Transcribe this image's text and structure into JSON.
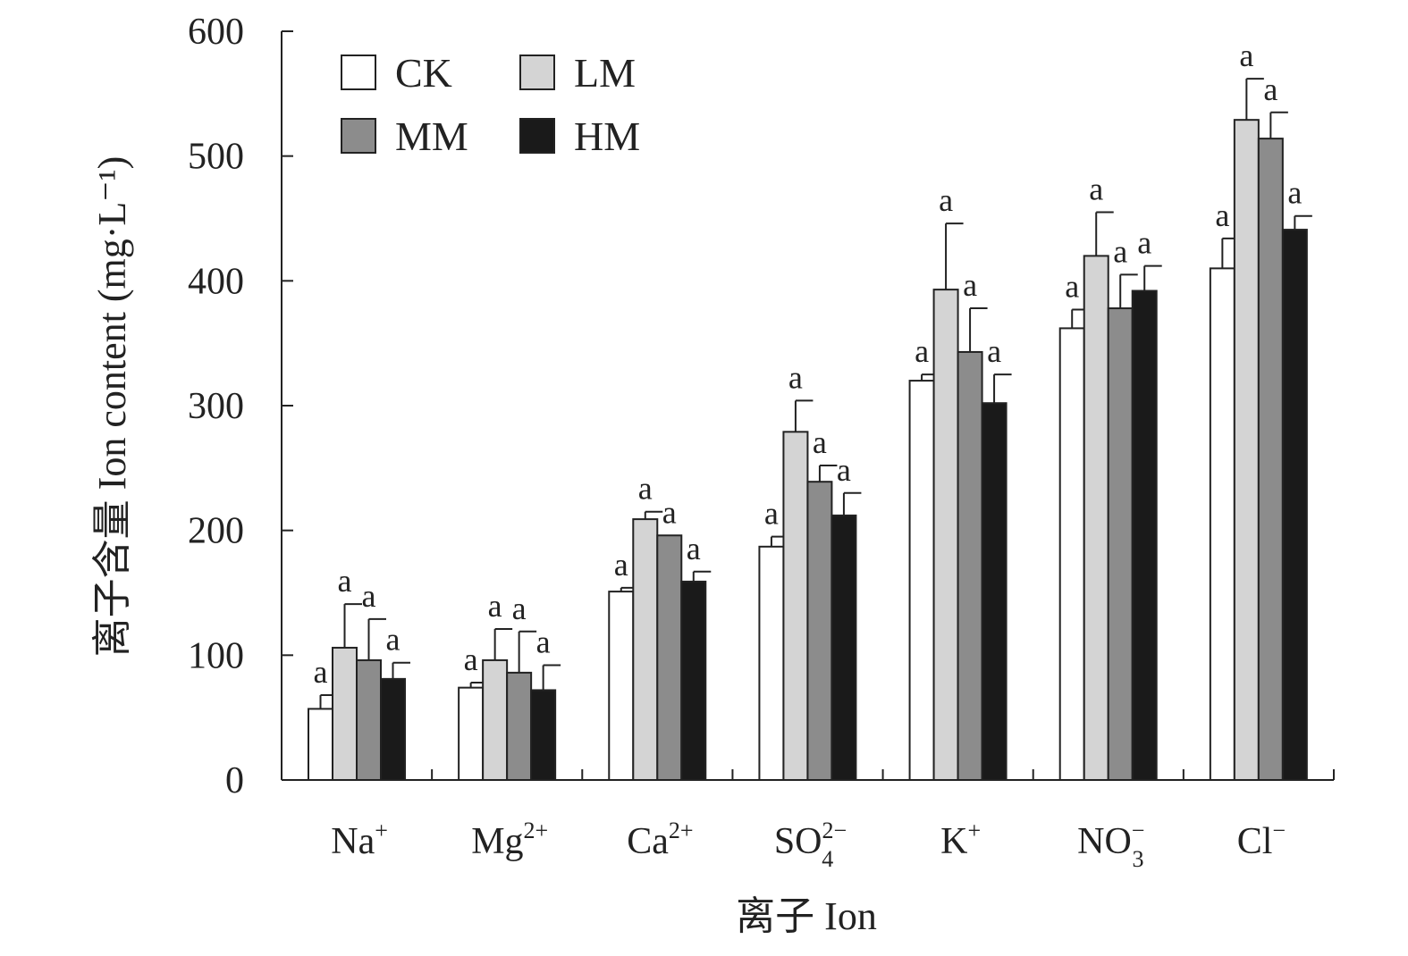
{
  "chart_data": {
    "type": "bar",
    "ylabel": "离子含量 Ion content (mg·L⁻¹)",
    "xlabel": "离子 Ion",
    "ylim": [
      0,
      600
    ],
    "yticks": [
      0,
      100,
      200,
      300,
      400,
      500,
      600
    ],
    "grid": false,
    "legend_position": "top-left",
    "categories": [
      {
        "base": "Na",
        "sup": "+",
        "sub": ""
      },
      {
        "base": "Mg",
        "sup": "2+",
        "sub": ""
      },
      {
        "base": "Ca",
        "sup": "2+",
        "sub": ""
      },
      {
        "base": "SO",
        "sup": "2−",
        "sub": "4"
      },
      {
        "base": "K",
        "sup": "+",
        "sub": ""
      },
      {
        "base": "NO",
        "sup": "−",
        "sub": "3"
      },
      {
        "base": "Cl",
        "sup": "−",
        "sub": ""
      }
    ],
    "series": [
      {
        "name": "CK",
        "color": "#ffffff",
        "values": [
          57,
          74,
          151,
          187,
          320,
          362,
          410
        ],
        "errors": [
          11,
          4,
          3,
          8,
          5,
          15,
          24
        ],
        "labels": [
          "a",
          "a",
          "a",
          "a",
          "a",
          "a",
          "a"
        ]
      },
      {
        "name": "LM",
        "color": "#d4d4d4",
        "values": [
          106,
          96,
          209,
          279,
          393,
          420,
          529
        ],
        "errors": [
          35,
          25,
          6,
          25,
          53,
          35,
          33
        ],
        "labels": [
          "a",
          "a",
          "a",
          "a",
          "a",
          "a",
          "a"
        ]
      },
      {
        "name": "MM",
        "color": "#8c8c8c",
        "values": [
          96,
          86,
          196,
          239,
          343,
          378,
          514
        ],
        "errors": [
          33,
          33,
          0,
          13,
          35,
          27,
          21
        ],
        "labels": [
          "a",
          "a",
          "a",
          "a",
          "a",
          "a",
          "a"
        ]
      },
      {
        "name": "HM",
        "color": "#1a1a1a",
        "values": [
          81,
          72,
          159,
          212,
          302,
          392,
          441
        ],
        "errors": [
          13,
          20,
          8,
          18,
          23,
          20,
          11
        ],
        "labels": [
          "a",
          "a",
          "a",
          "a",
          "a",
          "a",
          "a"
        ]
      }
    ]
  }
}
